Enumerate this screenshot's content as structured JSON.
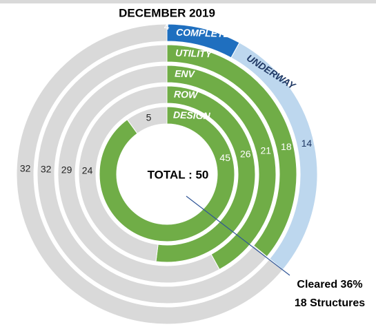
{
  "chart_data": {
    "type": "radial_bar",
    "title": "DECEMBER 2019",
    "center_label": "TOTAL : 50",
    "rings": [
      {
        "segments": [
          {
            "name": "COMPLETE",
            "value": 4,
            "color": "#1f6fbf"
          },
          {
            "name": "UNDERWAY",
            "value": 14,
            "color": "#bdd7ee"
          },
          {
            "value": 32,
            "color": "#d9d9d9"
          }
        ]
      },
      {
        "segments": [
          {
            "name": "UTILITY",
            "value": 18,
            "color": "#70ad47"
          },
          {
            "value": 32,
            "color": "#d9d9d9"
          }
        ]
      },
      {
        "segments": [
          {
            "name": "ENV",
            "value": 21,
            "color": "#70ad47"
          },
          {
            "value": 29,
            "color": "#d9d9d9"
          }
        ]
      },
      {
        "segments": [
          {
            "name": "ROW",
            "value": 26,
            "color": "#70ad47"
          },
          {
            "value": 24,
            "color": "#d9d9d9"
          }
        ]
      },
      {
        "segments": [
          {
            "name": "DESIGN",
            "value": 45,
            "color": "#70ad47"
          },
          {
            "value": 5,
            "color": "#d9d9d9"
          }
        ]
      }
    ],
    "annotation": {
      "lines": [
        "Cleared 36%",
        "18 Structures"
      ],
      "color": "#2f5597"
    }
  }
}
